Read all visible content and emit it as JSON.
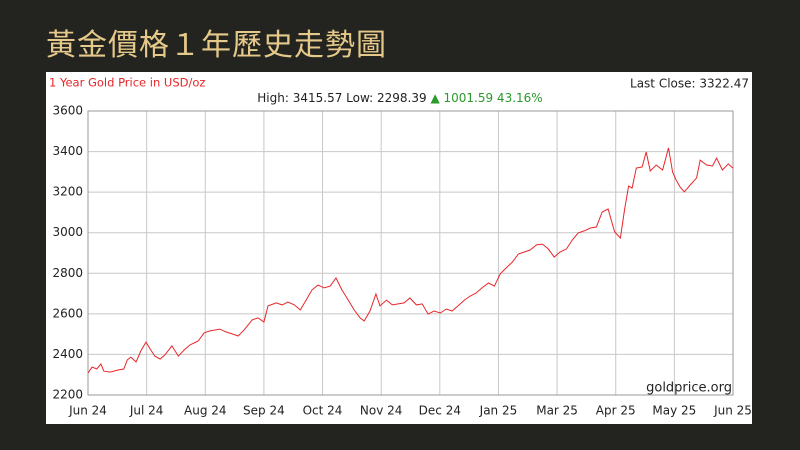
{
  "heading": "黃金價格１年歷史走勢圖",
  "chart_data": {
    "type": "line",
    "title": "1 Year Gold Price in USD/oz",
    "last_close": "Last Close: 3322.47",
    "stats": "High: 3415.57 Low: 2298.39",
    "change": "▲ 1001.59 43.16%",
    "source": "goldprice.org",
    "x": [
      0,
      0.07,
      0.15,
      0.22,
      0.27,
      0.38,
      0.51,
      0.61,
      0.67,
      0.73,
      0.82,
      0.9,
      0.99,
      1.06,
      1.14,
      1.23,
      1.31,
      1.43,
      1.54,
      1.64,
      1.74,
      1.88,
      1.98,
      2.08,
      2.25,
      2.35,
      2.46,
      2.56,
      2.66,
      2.8,
      2.9,
      3.0,
      3.07,
      3.21,
      3.31,
      3.41,
      3.52,
      3.62,
      3.72,
      3.82,
      3.92,
      4.03,
      4.13,
      4.23,
      4.33,
      4.44,
      4.54,
      4.64,
      4.71,
      4.81,
      4.91,
      4.98,
      5.09,
      5.19,
      5.29,
      5.39,
      5.49,
      5.6,
      5.7,
      5.8,
      5.9,
      6.01,
      6.11,
      6.21,
      6.31,
      6.42,
      6.52,
      6.62,
      6.72,
      6.83,
      6.93,
      7.03,
      7.13,
      7.24,
      7.34,
      7.44,
      7.54,
      7.65,
      7.75,
      7.85,
      7.95,
      8.05,
      8.16,
      8.26,
      8.36,
      8.46,
      8.57,
      8.67,
      8.77,
      8.87,
      8.98,
      9.08,
      9.15,
      9.22,
      9.28,
      9.35,
      9.45,
      9.52,
      9.59,
      9.69,
      9.8,
      9.9,
      9.97,
      10.03,
      10.1,
      10.17,
      10.27,
      10.38,
      10.44,
      10.55,
      10.65,
      10.72,
      10.82,
      10.92,
      11.0
    ],
    "series": [
      {
        "name": "Gold",
        "color": "#e8272a",
        "values": [
          2308,
          2338,
          2328,
          2353,
          2318,
          2313,
          2323,
          2328,
          2373,
          2387,
          2363,
          2417,
          2461,
          2427,
          2392,
          2377,
          2397,
          2442,
          2392,
          2422,
          2447,
          2466,
          2506,
          2516,
          2525,
          2511,
          2501,
          2491,
          2520,
          2570,
          2580,
          2560,
          2639,
          2654,
          2644,
          2658,
          2644,
          2619,
          2668,
          2718,
          2742,
          2728,
          2737,
          2777,
          2718,
          2668,
          2619,
          2580,
          2565,
          2614,
          2698,
          2639,
          2668,
          2644,
          2649,
          2654,
          2678,
          2644,
          2649,
          2599,
          2614,
          2604,
          2624,
          2614,
          2639,
          2668,
          2688,
          2703,
          2728,
          2752,
          2737,
          2797,
          2826,
          2856,
          2895,
          2905,
          2915,
          2940,
          2944,
          2920,
          2880,
          2905,
          2920,
          2964,
          2999,
          3009,
          3023,
          3028,
          3102,
          3117,
          3004,
          2974,
          3112,
          3230,
          3220,
          3319,
          3324,
          3398,
          3304,
          3334,
          3309,
          3418,
          3299,
          3260,
          3225,
          3201,
          3235,
          3270,
          3358,
          3334,
          3329,
          3368,
          3309,
          3339,
          3318
        ]
      }
    ],
    "xlim": [
      0,
      11
    ],
    "xticks": [
      {
        "value": 0,
        "label": "Jun 24"
      },
      {
        "value": 1,
        "label": "Jul 24"
      },
      {
        "value": 2,
        "label": "Aug 24"
      },
      {
        "value": 3,
        "label": "Sep 24"
      },
      {
        "value": 4,
        "label": "Oct 24"
      },
      {
        "value": 5,
        "label": "Nov 24"
      },
      {
        "value": 6,
        "label": "Dec 24"
      },
      {
        "value": 7,
        "label": "Jan 25"
      },
      {
        "value": 8,
        "label": "Mar 25"
      },
      {
        "value": 9,
        "label": "Apr 25"
      },
      {
        "value": 10,
        "label": "May 25"
      },
      {
        "value": 11,
        "label": "Jun 25"
      }
    ],
    "ylim": [
      2200,
      3600
    ],
    "yticks": [
      2200,
      2400,
      2600,
      2800,
      3000,
      3200,
      3400,
      3600
    ],
    "grid": true
  }
}
